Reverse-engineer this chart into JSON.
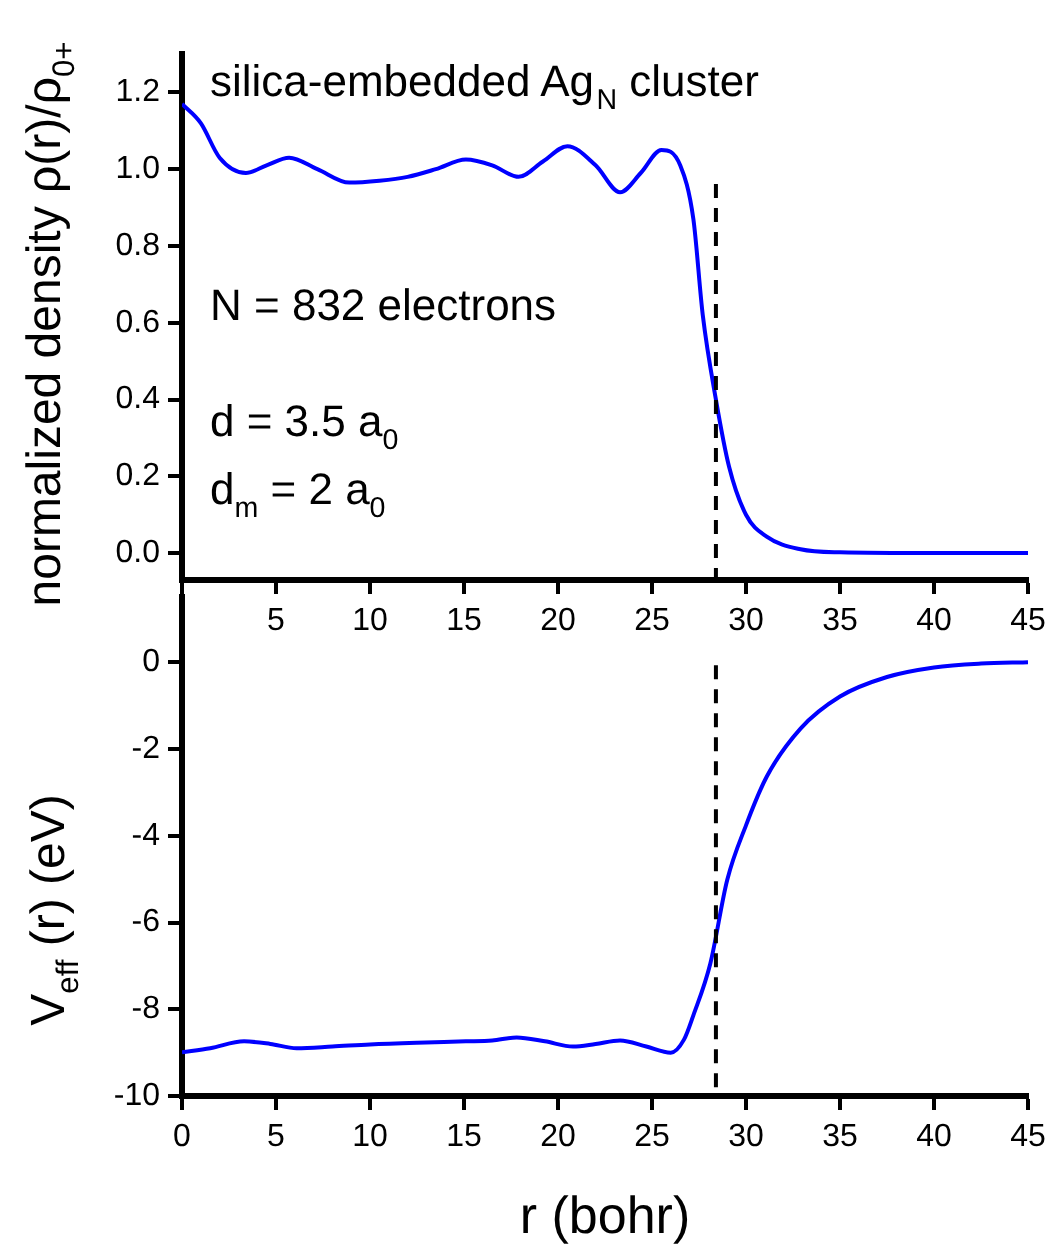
{
  "chart_data": [
    {
      "type": "line",
      "ylabel": "normalized density ρ(r)/ρ$_{0+}$",
      "annotations": [
        "silica-embedded Ag$_{N}$ cluster",
        "N = 832 electrons",
        "d = 3.5 a$_{0}$",
        "d$_{m}$ = 2 a$_{0}$"
      ],
      "xlim": [
        0,
        45
      ],
      "xticks": [
        {
          "value": 0,
          "label": null
        },
        5,
        10,
        15,
        20,
        25,
        30,
        35,
        40,
        45
      ],
      "ylim": [
        -0.07,
        1.3
      ],
      "yticks": [
        {
          "value": 0,
          "label": "0.0"
        },
        0.2,
        0.4,
        0.6,
        0.8,
        {
          "value": 1,
          "label": "1.0"
        },
        1.2
      ],
      "marker": "none",
      "line_style": "solid",
      "series": [
        {
          "color": "#0000ff",
          "x": [
            0,
            1,
            2,
            3.4,
            4.5,
            5.7,
            7.2,
            8.9,
            10.5,
            12,
            13.5,
            15.1,
            16.5,
            17.9,
            19.2,
            20.5,
            22,
            23.3,
            24.4,
            25.5,
            26.5,
            27.2,
            27.7,
            28.4,
            29.1,
            30,
            31.1,
            32.9,
            35,
            40,
            45
          ],
          "values": [
            1.17,
            1.12,
            1.03,
            0.99,
            1.01,
            1.03,
            1.0,
            0.965,
            0.97,
            0.98,
            1.0,
            1.025,
            1.01,
            0.98,
            1.02,
            1.06,
            1.01,
            0.94,
            0.99,
            1.05,
            1.01,
            0.87,
            0.62,
            0.4,
            0.225,
            0.1,
            0.043,
            0.01,
            0.002,
            0,
            0
          ]
        }
      ],
      "ref_lines": [
        {
          "axis": "x",
          "value": 28.4,
          "color": "#000000",
          "line_style": "dashed"
        }
      ]
    },
    {
      "type": "line",
      "xlabel": "r (bohr)",
      "ylabel": "V$_{eff}$ (r) (eV)",
      "xlim": [
        0,
        45
      ],
      "xticks": [
        0,
        5,
        10,
        15,
        20,
        25,
        30,
        35,
        40,
        45
      ],
      "ylim": [
        -10,
        1.5
      ],
      "yticks": [
        -10,
        -8,
        -6,
        -4,
        -2,
        0
      ],
      "marker": "none",
      "line_style": "solid",
      "series": [
        {
          "color": "#0000ff",
          "x": [
            0,
            1.5,
            3.3,
            4.7,
            6.1,
            8,
            10,
            12.5,
            15.1,
            16.5,
            17.8,
            19.3,
            20.8,
            22,
            23.3,
            24.7,
            26,
            26.7,
            27.2,
            28.1,
            29,
            30,
            31.1,
            32.9,
            35,
            37.5,
            40,
            42.5,
            45
          ],
          "values": [
            -8.99,
            -8.9,
            -8.74,
            -8.8,
            -8.9,
            -8.86,
            -8.81,
            -8.77,
            -8.74,
            -8.72,
            -8.65,
            -8.74,
            -8.86,
            -8.8,
            -8.72,
            -8.86,
            -9.0,
            -8.7,
            -8.14,
            -6.95,
            -5.02,
            -3.76,
            -2.64,
            -1.53,
            -0.79,
            -0.34,
            -0.12,
            -0.03,
            0
          ]
        }
      ],
      "ref_lines": [
        {
          "axis": "x",
          "value": 28.4,
          "color": "#000000",
          "line_style": "dashed"
        }
      ]
    }
  ]
}
